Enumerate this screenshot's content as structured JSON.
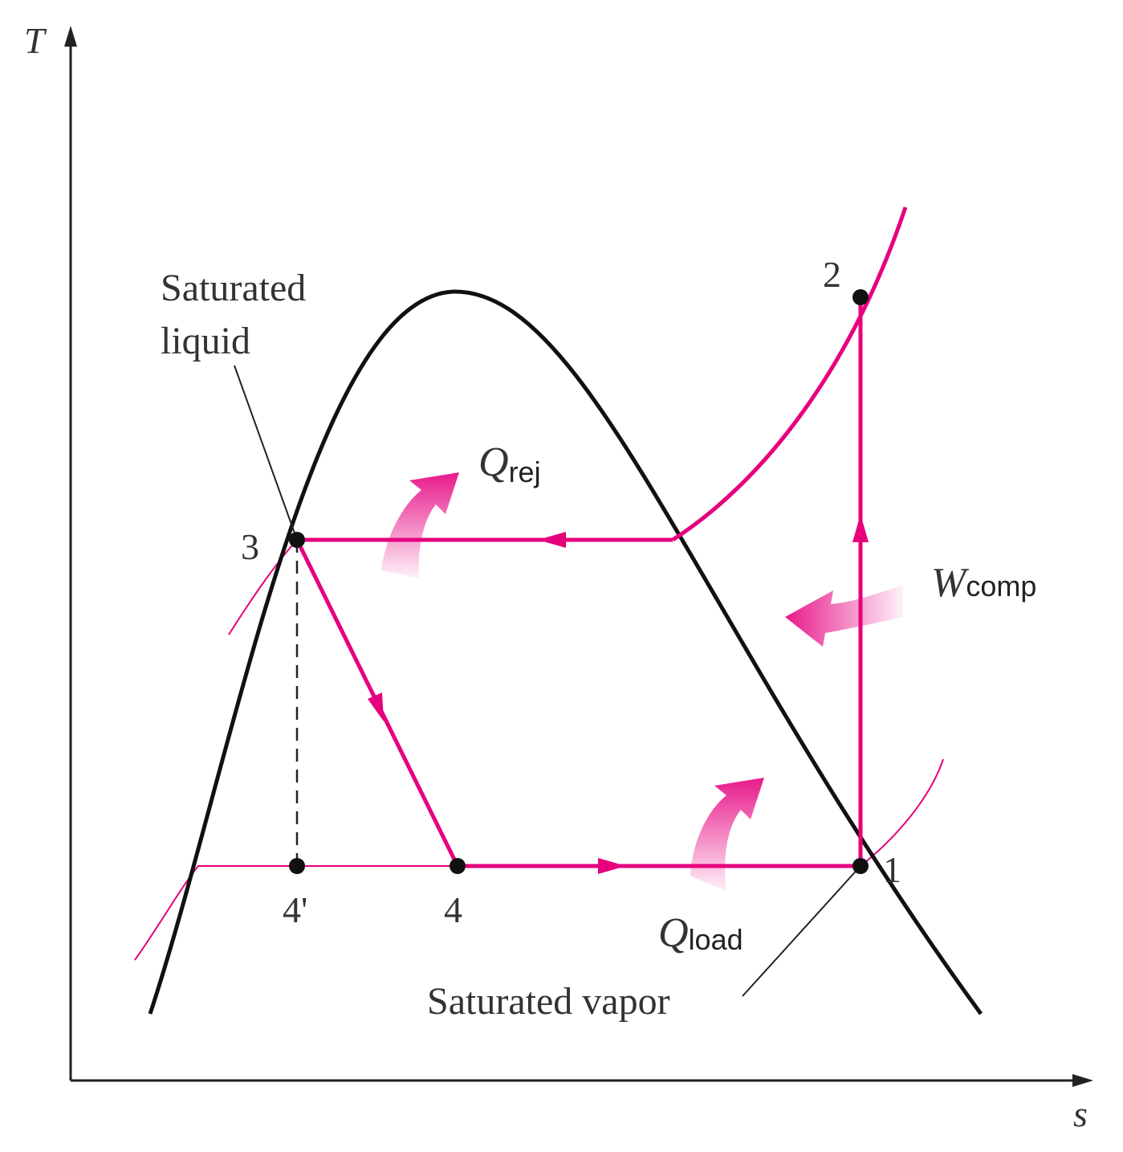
{
  "axes": {
    "y_label": "T",
    "x_label": "s"
  },
  "points": [
    {
      "label": "1"
    },
    {
      "label": "2"
    },
    {
      "label": "3"
    },
    {
      "label": "4"
    },
    {
      "label": "4'"
    }
  ],
  "annotations": {
    "saturated_liquid": [
      "Saturated",
      "liquid"
    ],
    "saturated_vapor": "Saturated vapor"
  },
  "energy": [
    {
      "symbol": "Q",
      "subscript": "rej"
    },
    {
      "symbol": "Q",
      "subscript": "load"
    },
    {
      "symbol": "W",
      "subscript": "comp"
    }
  ]
}
